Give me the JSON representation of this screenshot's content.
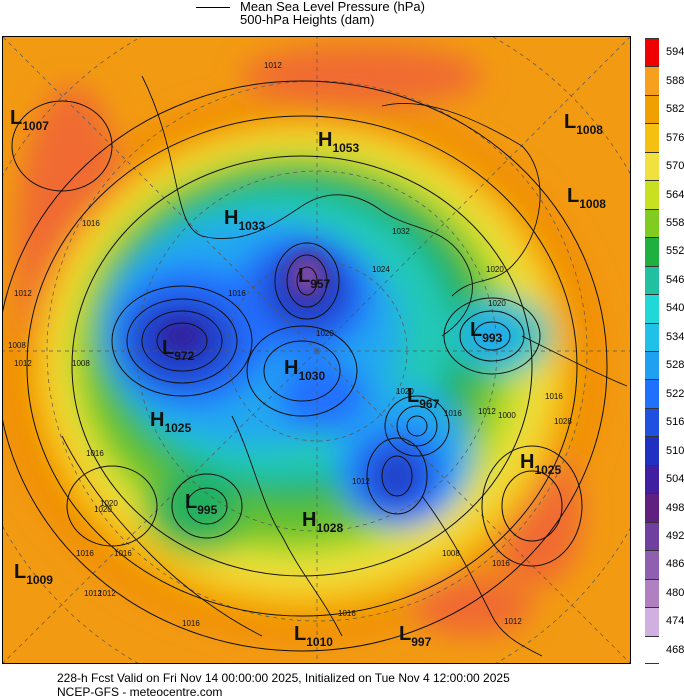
{
  "legend": {
    "line1": "Mean Sea Level Pressure (hPa)",
    "line2": "500-hPa Heights (dam)"
  },
  "colorbar": {
    "labels": [
      "594",
      "588",
      "582",
      "576",
      "570",
      "564",
      "558",
      "552",
      "546",
      "540",
      "534",
      "528",
      "522",
      "516",
      "510",
      "504",
      "498",
      "492",
      "486",
      "480",
      "474",
      "468"
    ],
    "colors": [
      "#ee0000",
      "#f7a020",
      "#f0a000",
      "#f5c010",
      "#f0e040",
      "#c8e020",
      "#80cc20",
      "#20b040",
      "#20c0a0",
      "#20d8d8",
      "#20c0e8",
      "#20a0f0",
      "#2070ff",
      "#2050e0",
      "#2030c0",
      "#4020a0",
      "#602080",
      "#7040a0",
      "#9060b0",
      "#b080c0",
      "#d0b0e0",
      "#ffffff"
    ]
  },
  "pressure_centers": [
    {
      "type": "L",
      "value": "1007"
    },
    {
      "type": "H",
      "value": "1053"
    },
    {
      "type": "L",
      "value": "1008"
    },
    {
      "type": "L",
      "value": "1008"
    },
    {
      "type": "H",
      "value": "1033"
    },
    {
      "type": "L",
      "value": "957"
    },
    {
      "type": "L",
      "value": "972"
    },
    {
      "type": "L",
      "value": "993"
    },
    {
      "type": "H",
      "value": "1030"
    },
    {
      "type": "L",
      "value": "967"
    },
    {
      "type": "H",
      "value": "1025"
    },
    {
      "type": "H",
      "value": "1025"
    },
    {
      "type": "L",
      "value": "995"
    },
    {
      "type": "H",
      "value": "1028"
    },
    {
      "type": "L",
      "value": "1009"
    },
    {
      "type": "L",
      "value": "1010"
    },
    {
      "type": "L",
      "value": "997"
    }
  ],
  "isobar_labels": [
    "1012",
    "1008",
    "1016",
    "1012",
    "1012",
    "1008",
    "1016",
    "1020",
    "1016",
    "1012",
    "1016",
    "1016",
    "1032",
    "1024",
    "1020",
    "1020",
    "1012",
    "1020",
    "1016",
    "1008",
    "1028",
    "1012",
    "1000",
    "1020",
    "1016",
    "1012",
    "1016",
    "1020",
    "1016",
    "1012",
    "1016"
  ],
  "footer": {
    "line1": "228-h Fcst Valid on Fri Nov 14 00:00:00 2025, Initialized on Tue Nov  4 12:00:00 2025",
    "line2": "NCEP-GFS - meteocentre.com"
  }
}
